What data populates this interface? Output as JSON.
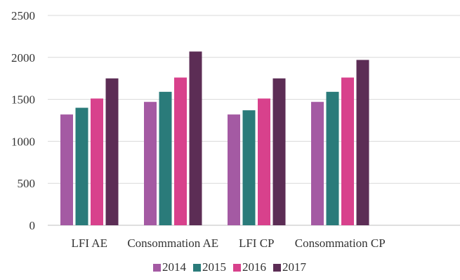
{
  "chart_data": {
    "type": "bar",
    "title": "",
    "xlabel": "",
    "ylabel": "",
    "ylim": [
      0,
      2500
    ],
    "yticks": [
      0,
      500,
      1000,
      1500,
      2000,
      2500
    ],
    "grid": true,
    "legend_position": "bottom",
    "categories": [
      "LFI AE",
      "Consommation AE",
      "LFI CP",
      "Consommation CP"
    ],
    "series": [
      {
        "name": "2014",
        "color": "#a45aa3",
        "values": [
          1320,
          1470,
          1320,
          1470
        ]
      },
      {
        "name": "2015",
        "color": "#2a7b7a",
        "values": [
          1400,
          1590,
          1370,
          1590
        ]
      },
      {
        "name": "2016",
        "color": "#d8418c",
        "values": [
          1510,
          1760,
          1510,
          1760
        ]
      },
      {
        "name": "2017",
        "color": "#5c2d55",
        "values": [
          1750,
          2070,
          1750,
          1970
        ]
      }
    ]
  }
}
